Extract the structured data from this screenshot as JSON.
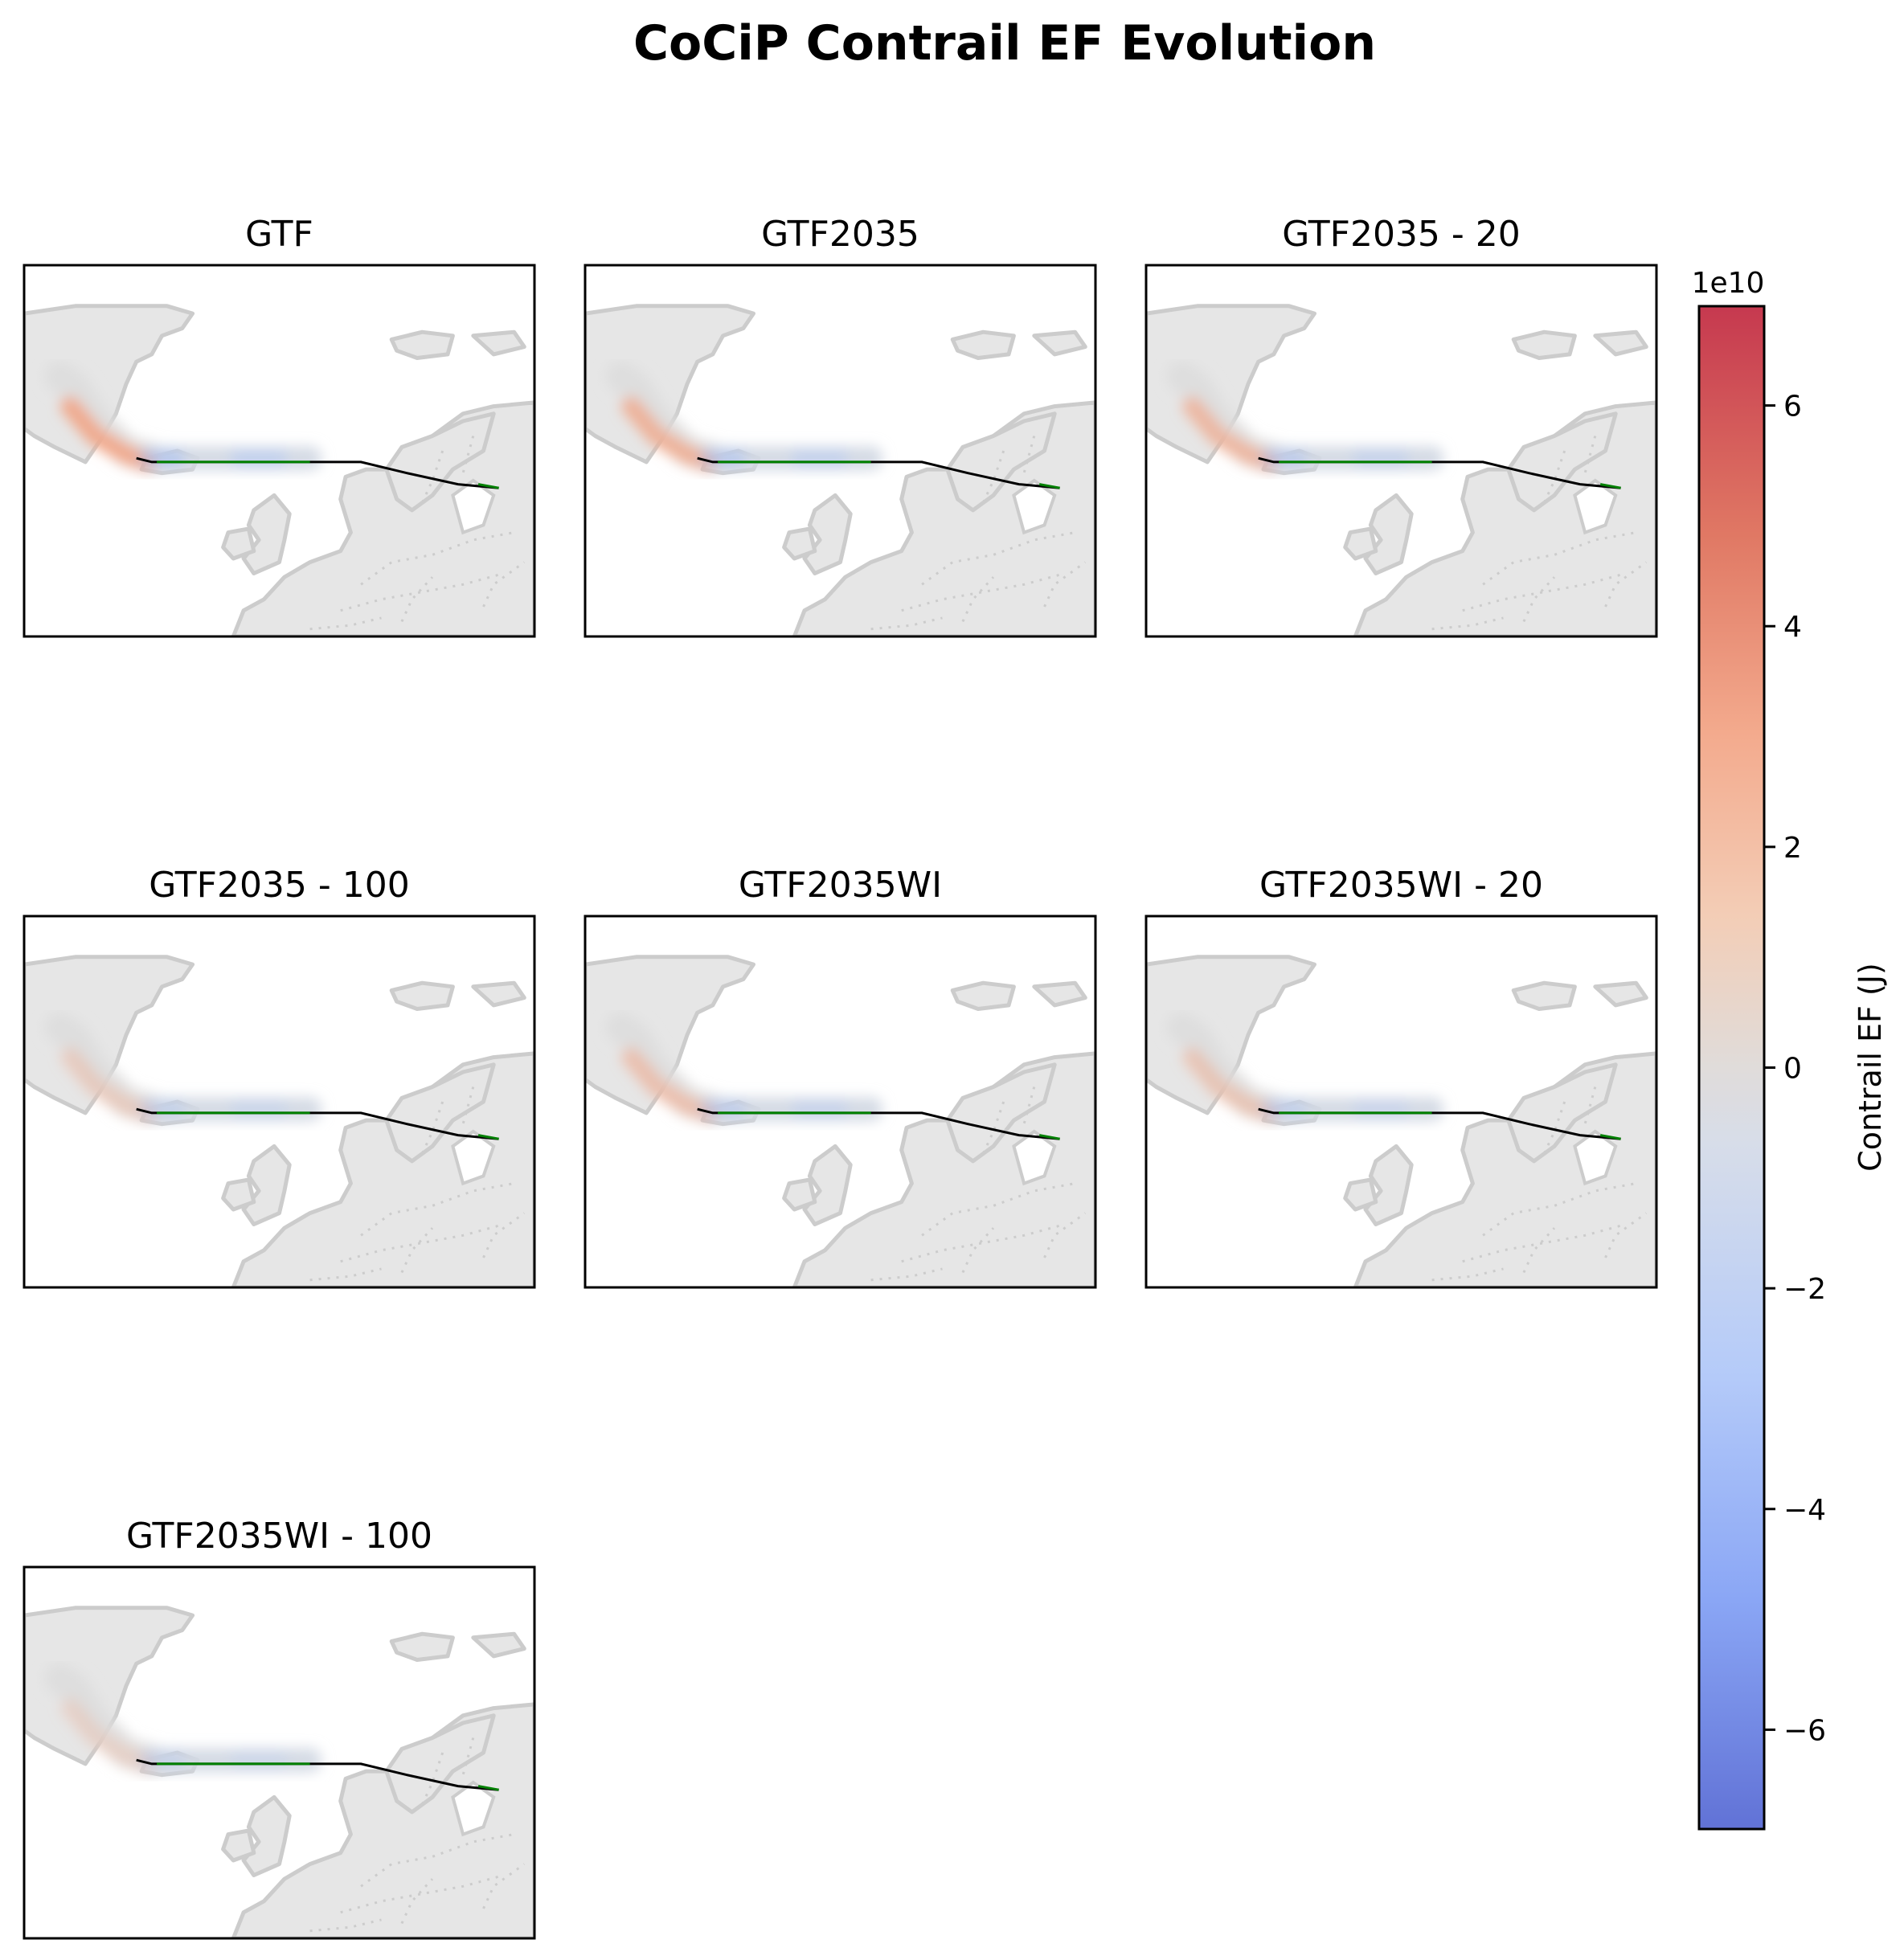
{
  "figure": {
    "title": "CoCiP Contrail EF Evolution"
  },
  "chart_data": {
    "type": "map",
    "panels": [
      {
        "title": "GTF",
        "warm_intensity": 1.0,
        "cool_intensity": 0.55
      },
      {
        "title": "GTF2035",
        "warm_intensity": 0.85,
        "cool_intensity": 0.5
      },
      {
        "title": "GTF2035 - 20",
        "warm_intensity": 0.75,
        "cool_intensity": 0.45
      },
      {
        "title": "GTF2035 - 100",
        "warm_intensity": 0.4,
        "cool_intensity": 0.3
      },
      {
        "title": "GTF2035WI",
        "warm_intensity": 0.6,
        "cool_intensity": 0.4
      },
      {
        "title": "GTF2035WI - 20",
        "warm_intensity": 0.5,
        "cool_intensity": 0.35
      },
      {
        "title": "GTF2035WI - 100",
        "warm_intensity": 0.3,
        "cool_intensity": 0.25
      }
    ],
    "colorbar": {
      "label": "Contrail EF (J)",
      "offset_text": "1e10",
      "colormap": "coolwarm",
      "range": [
        -6.9,
        6.9
      ],
      "ticks": [
        6,
        4,
        2,
        0,
        -2,
        -4,
        -6
      ],
      "tick_labels": [
        "6",
        "4",
        "2",
        "0",
        "−2",
        "−4",
        "−6"
      ]
    },
    "flight_path_colors": {
      "segment": "#000000",
      "contrail_forming": "#008000"
    },
    "land_color": "#e6e6e6",
    "coastline_color": "#cccccc"
  }
}
